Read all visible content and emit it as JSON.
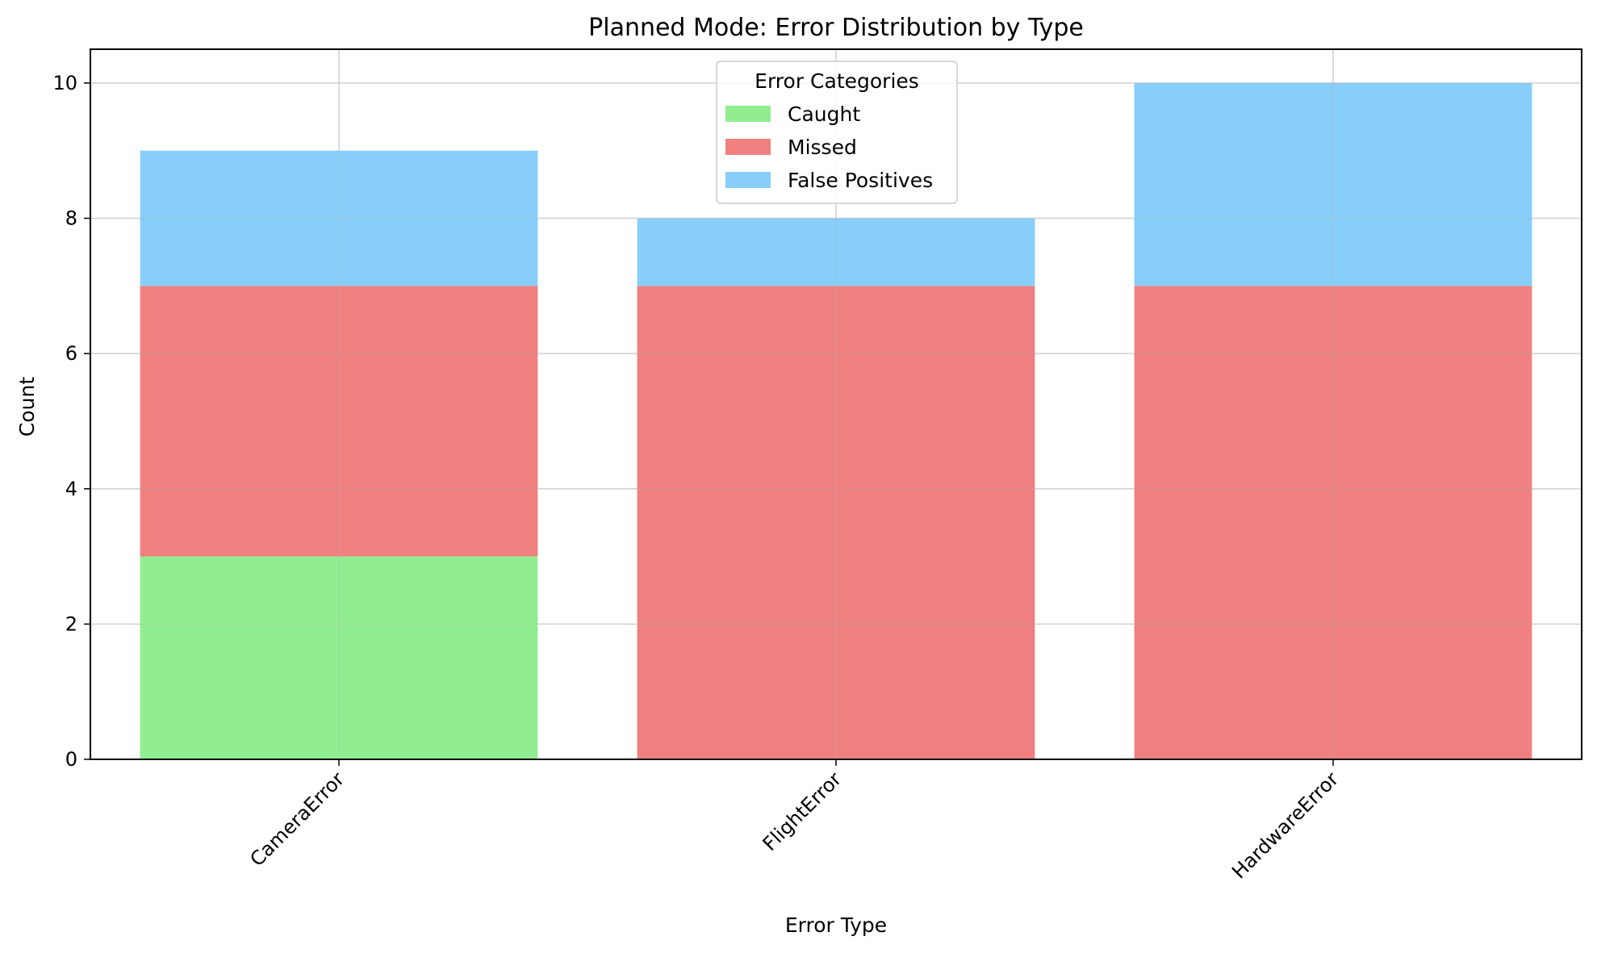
{
  "chart_data": {
    "type": "bar",
    "stacked": true,
    "title": "Planned Mode: Error Distribution by Type",
    "xlabel": "Error Type",
    "ylabel": "Count",
    "categories": [
      "CameraError",
      "FlightError",
      "HardwareError"
    ],
    "series": [
      {
        "name": "Caught",
        "values": [
          3,
          0,
          0
        ],
        "color": "#90ee90"
      },
      {
        "name": "Missed",
        "values": [
          4,
          7,
          7
        ],
        "color": "#f08080"
      },
      {
        "name": "False Positives",
        "values": [
          2,
          1,
          3
        ],
        "color": "#87cefa"
      }
    ],
    "ylim": [
      0,
      10.5
    ],
    "yticks": [
      0,
      2,
      4,
      6,
      8,
      10
    ],
    "grid": true,
    "legend": {
      "title": "Error Categories",
      "placement": "top-center"
    }
  }
}
